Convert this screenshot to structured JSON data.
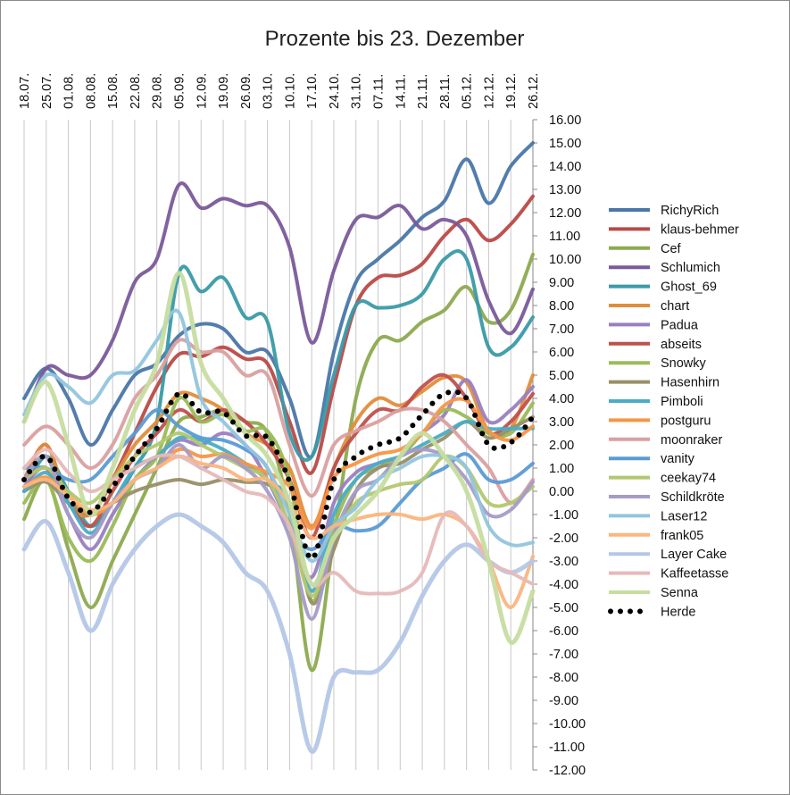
{
  "chart_data": {
    "type": "line",
    "title": "Prozente bis 23. Dezember",
    "x_labels": [
      "18.07.",
      "25.07.",
      "01.08.",
      "08.08.",
      "15.08.",
      "22.08.",
      "29.08.",
      "05.09.",
      "12.09.",
      "19.09.",
      "26.09.",
      "03.10.",
      "10.10.",
      "17.10.",
      "24.10.",
      "31.10.",
      "07.11.",
      "14.11.",
      "21.11.",
      "28.11.",
      "05.12.",
      "12.12.",
      "19.12.",
      "26.12."
    ],
    "ylim": [
      -12,
      16
    ],
    "y_ticks": [
      "16.00",
      "15.00",
      "14.00",
      "13.00",
      "12.00",
      "11.00",
      "10.00",
      "9.00",
      "8.00",
      "7.00",
      "6.00",
      "5.00",
      "4.00",
      "3.00",
      "2.00",
      "1.00",
      "0.00",
      "-1.00",
      "-2.00",
      "-3.00",
      "-4.00",
      "-5.00",
      "-6.00",
      "-7.00",
      "-8.00",
      "-9.00",
      "-10.00",
      "-11.00",
      "-12.00"
    ],
    "grid": "vertical",
    "legend_position": "right",
    "series": [
      {
        "name": "RichyRich",
        "color": "#4a76a8",
        "width": 4,
        "values": [
          4.0,
          5.3,
          4.0,
          2.0,
          3.5,
          5.0,
          5.5,
          6.7,
          7.2,
          7.0,
          6.0,
          6.0,
          4.0,
          1.5,
          6.0,
          9.0,
          10.0,
          10.8,
          11.8,
          12.5,
          14.3,
          12.4,
          14.0,
          15.0
        ]
      },
      {
        "name": "klaus-behmer",
        "color": "#b94a47",
        "width": 4,
        "values": [
          0.5,
          2.0,
          -0.5,
          -1.0,
          0.5,
          2.5,
          4.5,
          5.9,
          5.8,
          6.2,
          5.7,
          5.5,
          3.0,
          0.8,
          4.5,
          8.0,
          9.2,
          9.3,
          9.8,
          11.0,
          11.7,
          10.8,
          11.5,
          12.7
        ]
      },
      {
        "name": "Cef",
        "color": "#8daa4f",
        "width": 4,
        "values": [
          -1.2,
          0.5,
          -2.5,
          -5.0,
          -3.0,
          -1.0,
          1.0,
          3.0,
          3.2,
          3.5,
          3.0,
          2.5,
          -1.0,
          -7.7,
          -2.0,
          4.0,
          6.5,
          6.5,
          7.3,
          7.8,
          8.8,
          7.3,
          7.8,
          10.2
        ]
      },
      {
        "name": "Schlumich",
        "color": "#7a5a9a",
        "width": 4,
        "values": [
          3.0,
          5.3,
          5.0,
          5.0,
          6.5,
          9.0,
          10.0,
          13.2,
          12.2,
          12.6,
          12.3,
          12.3,
          10.5,
          6.4,
          9.5,
          11.7,
          11.8,
          12.3,
          11.3,
          11.7,
          11.0,
          8.2,
          6.8,
          8.7
        ]
      },
      {
        "name": "Ghost_69",
        "color": "#3a9aa8",
        "width": 4,
        "values": [
          0.0,
          1.5,
          0.0,
          -1.5,
          -0.5,
          1.0,
          3.0,
          9.4,
          8.6,
          9.2,
          7.5,
          7.3,
          2.5,
          1.5,
          5.0,
          8.0,
          7.9,
          8.0,
          8.5,
          10.0,
          10.0,
          6.2,
          6.2,
          7.5
        ]
      },
      {
        "name": "chart",
        "color": "#e18d3b",
        "width": 4,
        "values": [
          0.5,
          2.0,
          -0.5,
          -1.0,
          0.5,
          2.0,
          3.0,
          4.2,
          4.0,
          3.5,
          2.5,
          2.0,
          1.0,
          -1.5,
          1.0,
          3.0,
          4.0,
          3.7,
          4.3,
          4.9,
          4.7,
          2.6,
          2.7,
          5.0
        ]
      },
      {
        "name": "Padua",
        "color": "#9a80c0",
        "width": 4,
        "values": [
          0.2,
          1.0,
          -1.0,
          -2.5,
          -1.0,
          0.5,
          1.5,
          2.2,
          2.0,
          2.5,
          2.0,
          0.5,
          -1.5,
          -3.7,
          -0.5,
          0.8,
          1.2,
          1.5,
          2.5,
          3.3,
          4.8,
          3.0,
          3.5,
          4.5
        ]
      },
      {
        "name": "abseits",
        "color": "#c0504d",
        "width": 4,
        "values": [
          0.5,
          1.0,
          -0.5,
          -1.5,
          0.0,
          1.5,
          2.5,
          3.5,
          3.0,
          3.5,
          3.0,
          2.0,
          0.5,
          -2.0,
          1.0,
          2.5,
          3.5,
          3.5,
          4.5,
          5.0,
          4.0,
          2.5,
          3.0,
          4.2
        ]
      },
      {
        "name": "Snowky",
        "color": "#9bbb59",
        "width": 4,
        "values": [
          -0.5,
          0.5,
          -2.0,
          -3.0,
          -1.5,
          0.5,
          1.5,
          4.0,
          3.0,
          3.3,
          2.6,
          2.6,
          0.5,
          -4.7,
          -1.5,
          0.5,
          1.0,
          1.5,
          2.5,
          3.5,
          3.2,
          2.5,
          2.5,
          3.8
        ]
      },
      {
        "name": "Hasenhirn",
        "color": "#988f68",
        "width": 4,
        "values": [
          0.0,
          0.4,
          -0.5,
          -1.0,
          -0.5,
          0.0,
          0.3,
          0.5,
          0.3,
          0.5,
          0.4,
          0.3,
          -0.5,
          -4.8,
          -2.5,
          0.0,
          1.0,
          1.2,
          1.8,
          2.3,
          3.0,
          2.3,
          2.7,
          3.2
        ]
      },
      {
        "name": "Pimboli",
        "color": "#4bacc6",
        "width": 4,
        "values": [
          0.0,
          0.8,
          -0.5,
          -1.8,
          -0.5,
          1.0,
          1.5,
          2.3,
          2.2,
          1.8,
          1.2,
          0.5,
          -0.5,
          -4.3,
          -1.0,
          0.5,
          1.2,
          1.5,
          2.0,
          2.5,
          3.0,
          2.7,
          2.7,
          2.7
        ]
      },
      {
        "name": "postguru",
        "color": "#f79646",
        "width": 4,
        "values": [
          0.2,
          0.6,
          -0.2,
          -1.0,
          -0.5,
          0.5,
          1.0,
          1.8,
          1.5,
          1.6,
          1.2,
          0.8,
          0.2,
          -1.6,
          0.6,
          1.2,
          1.6,
          1.8,
          2.5,
          3.7,
          3.9,
          2.6,
          2.2,
          2.8
        ]
      },
      {
        "name": "moonraker",
        "color": "#daa0a0",
        "width": 4,
        "values": [
          2.0,
          2.8,
          2.0,
          1.0,
          2.0,
          4.0,
          5.0,
          6.5,
          6.0,
          6.0,
          5.0,
          5.0,
          2.0,
          -0.2,
          2.0,
          2.6,
          3.0,
          3.5,
          3.5,
          3.0,
          2.0,
          1.0,
          -0.5,
          0.5
        ]
      },
      {
        "name": "vanity",
        "color": "#5b9bd5",
        "width": 4,
        "values": [
          1.0,
          1.0,
          0.5,
          0.5,
          1.5,
          2.5,
          3.5,
          2.8,
          2.3,
          2.2,
          1.8,
          1.0,
          -1.5,
          -2.5,
          -1.5,
          -1.7,
          -1.5,
          -0.5,
          0.5,
          1.0,
          1.6,
          0.5,
          0.5,
          1.2
        ]
      },
      {
        "name": "ceekay74",
        "color": "#b2c86e",
        "width": 4,
        "values": [
          0.5,
          1.0,
          0.0,
          -0.5,
          0.5,
          1.5,
          2.0,
          2.5,
          2.0,
          1.5,
          1.0,
          0.5,
          -1.5,
          -4.5,
          -2.0,
          -0.5,
          0.0,
          0.3,
          0.5,
          1.5,
          1.0,
          -0.5,
          -0.5,
          0.2
        ]
      },
      {
        "name": "Schildkröte",
        "color": "#a79bc6",
        "width": 4,
        "values": [
          0.5,
          1.5,
          -1.0,
          -2.0,
          -0.5,
          0.5,
          1.0,
          2.0,
          1.0,
          1.5,
          1.0,
          0.0,
          -2.0,
          -5.5,
          -2.0,
          0.0,
          0.5,
          1.5,
          1.8,
          1.5,
          0.5,
          -1.0,
          -0.8,
          0.4
        ]
      },
      {
        "name": "Laser12",
        "color": "#92c5de",
        "width": 4,
        "values": [
          3.3,
          5.0,
          4.5,
          3.8,
          5.0,
          5.2,
          6.5,
          7.7,
          4.0,
          3.0,
          2.0,
          1.0,
          -1.0,
          -3.0,
          -1.5,
          -0.7,
          0.5,
          1.0,
          1.5,
          1.5,
          1.0,
          -1.5,
          -2.3,
          -2.2
        ]
      },
      {
        "name": "frank05",
        "color": "#fbb57e",
        "width": 4,
        "values": [
          0.2,
          0.5,
          -0.2,
          -0.8,
          -0.5,
          0.5,
          1.0,
          1.5,
          1.2,
          1.0,
          0.5,
          0.5,
          -0.5,
          -2.0,
          -1.5,
          -1.2,
          -1.0,
          -1.0,
          -1.2,
          -1.0,
          -1.5,
          -3.0,
          -5.0,
          -2.8
        ]
      },
      {
        "name": "Layer Cake",
        "color": "#b4c7e7",
        "width": 5,
        "values": [
          -2.5,
          -1.3,
          -3.5,
          -6.0,
          -4.0,
          -2.5,
          -1.5,
          -1.0,
          -1.5,
          -2.2,
          -3.5,
          -4.3,
          -7.0,
          -11.2,
          -8.0,
          -7.8,
          -7.7,
          -6.5,
          -4.5,
          -3.0,
          -2.3,
          -3.0,
          -3.5,
          -3.0
        ]
      },
      {
        "name": "Kaffeetasse",
        "color": "#e6b9b8",
        "width": 4,
        "values": [
          1.0,
          1.8,
          0.8,
          0.0,
          0.5,
          1.0,
          1.5,
          1.5,
          1.0,
          0.5,
          0.0,
          -0.3,
          -1.5,
          -4.0,
          -3.5,
          -4.3,
          -4.4,
          -4.3,
          -3.5,
          -1.0,
          -1.5,
          -3.0,
          -3.5,
          -4.0
        ]
      },
      {
        "name": "Senna",
        "color": "#c6dda0",
        "width": 5,
        "values": [
          3.0,
          4.7,
          2.0,
          -1.0,
          1.0,
          3.5,
          5.5,
          9.4,
          5.5,
          4.0,
          2.5,
          1.5,
          -0.5,
          -4.0,
          -2.0,
          -1.0,
          0.0,
          1.5,
          2.5,
          1.5,
          0.0,
          -3.0,
          -6.5,
          -4.3
        ]
      },
      {
        "name": "Herde",
        "color": "#000000",
        "width": 6,
        "dotted": true,
        "values": [
          0.5,
          1.5,
          -0.3,
          -0.9,
          0.2,
          1.5,
          2.7,
          4.2,
          3.4,
          3.4,
          2.4,
          2.3,
          0.4,
          -2.9,
          0.5,
          1.5,
          2.0,
          2.3,
          3.3,
          4.2,
          4.0,
          2.0,
          2.1,
          3.2
        ]
      }
    ]
  }
}
